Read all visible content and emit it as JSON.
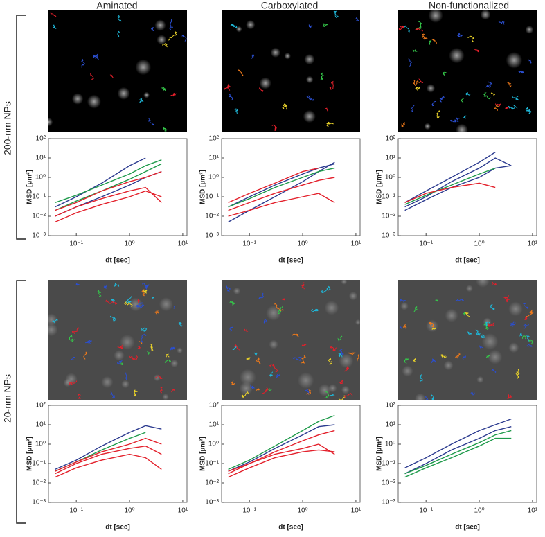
{
  "columns": [
    "Aminated",
    "Carboxylated",
    "Non-functionalized"
  ],
  "rows": [
    "200-nm NPs",
    "20-nm NPs"
  ],
  "chart_data": [
    {
      "type": "line",
      "x_label": "dt [sec]",
      "y_label": "MSD [µm²]",
      "log_x": true,
      "log_y": true,
      "xlim": [
        0.03,
        12
      ],
      "ylim": [
        0.001,
        100
      ],
      "xticks": [
        {
          "value": 0.1,
          "label": "10⁻¹"
        },
        {
          "value": 1,
          "label": "10⁰"
        },
        {
          "value": 10,
          "label": "10¹"
        }
      ],
      "yticks": [
        {
          "value": 0.001,
          "label": "10⁻³"
        },
        {
          "value": 0.01,
          "label": "10⁻²"
        },
        {
          "value": 0.1,
          "label": "10⁻¹"
        },
        {
          "value": 1,
          "label": "10⁰"
        },
        {
          "value": 10,
          "label": "10¹"
        },
        {
          "value": 100,
          "label": "10²"
        }
      ],
      "x": [
        0.04,
        0.1,
        0.3,
        1,
        2,
        4
      ],
      "series": [
        {
          "color": "#2b3a8f",
          "values": [
            0.03,
            0.1,
            0.5,
            4,
            10,
            null
          ]
        },
        {
          "color": "#2b3a8f",
          "values": [
            0.01,
            0.03,
            0.1,
            0.4,
            1,
            2
          ]
        },
        {
          "color": "#1e9a4a",
          "values": [
            0.05,
            0.12,
            0.4,
            1.5,
            4,
            8
          ]
        },
        {
          "color": "#1e9a4a",
          "values": [
            0.02,
            0.06,
            0.2,
            0.8,
            2,
            5
          ]
        },
        {
          "color": "#e3202b",
          "values": [
            0.02,
            0.05,
            0.2,
            0.6,
            1,
            2
          ]
        },
        {
          "color": "#e3202b",
          "values": [
            0.005,
            0.015,
            0.04,
            0.1,
            0.2,
            0.1
          ]
        },
        {
          "color": "#e3202b",
          "values": [
            0.01,
            0.03,
            0.08,
            0.2,
            0.3,
            0.05
          ]
        }
      ]
    },
    {
      "type": "line",
      "x_label": "dt [sec]",
      "y_label": "MSD [µm²]",
      "log_x": true,
      "log_y": true,
      "xlim": [
        0.03,
        12
      ],
      "ylim": [
        0.001,
        100
      ],
      "xticks": [
        {
          "value": 0.1,
          "label": "10⁻¹"
        },
        {
          "value": 1,
          "label": "10⁰"
        },
        {
          "value": 10,
          "label": "10¹"
        }
      ],
      "yticks": [
        {
          "value": 0.001,
          "label": "10⁻³"
        },
        {
          "value": 0.01,
          "label": "10⁻²"
        },
        {
          "value": 0.1,
          "label": "10⁻¹"
        },
        {
          "value": 1,
          "label": "10⁰"
        },
        {
          "value": 10,
          "label": "10¹"
        },
        {
          "value": 100,
          "label": "10²"
        }
      ],
      "x": [
        0.04,
        0.1,
        0.3,
        1,
        2,
        4
      ],
      "series": [
        {
          "color": "#2b3a8f",
          "values": [
            0.005,
            0.02,
            0.1,
            0.6,
            2,
            6
          ]
        },
        {
          "color": "#2b3a8f",
          "values": [
            0.03,
            0.1,
            0.4,
            1.5,
            3,
            5
          ]
        },
        {
          "color": "#1e9a4a",
          "values": [
            0.03,
            0.08,
            0.3,
            1,
            2,
            3
          ]
        },
        {
          "color": "#e3202b",
          "values": [
            0.05,
            0.15,
            0.5,
            2,
            3,
            null
          ]
        },
        {
          "color": "#e3202b",
          "values": [
            0.02,
            0.05,
            0.15,
            0.4,
            0.7,
            1
          ]
        },
        {
          "color": "#e3202b",
          "values": [
            0.01,
            0.02,
            0.05,
            0.1,
            0.15,
            0.05
          ]
        }
      ]
    },
    {
      "type": "line",
      "x_label": "dt [sec]",
      "y_label": "MSD [µm²]",
      "log_x": true,
      "log_y": true,
      "xlim": [
        0.03,
        12
      ],
      "ylim": [
        0.001,
        100
      ],
      "xticks": [
        {
          "value": 0.1,
          "label": "10⁻¹"
        },
        {
          "value": 1,
          "label": "10⁰"
        },
        {
          "value": 10,
          "label": "10¹"
        }
      ],
      "yticks": [
        {
          "value": 0.001,
          "label": "10⁻³"
        },
        {
          "value": 0.01,
          "label": "10⁻²"
        },
        {
          "value": 0.1,
          "label": "10⁻¹"
        },
        {
          "value": 1,
          "label": "10⁰"
        },
        {
          "value": 10,
          "label": "10¹"
        },
        {
          "value": 100,
          "label": "10²"
        }
      ],
      "x": [
        0.04,
        0.1,
        0.3,
        1,
        2,
        4
      ],
      "series": [
        {
          "color": "#2b3a8f",
          "values": [
            0.05,
            0.2,
            1,
            6,
            20,
            null
          ]
        },
        {
          "color": "#2b3a8f",
          "values": [
            0.03,
            0.1,
            0.6,
            3,
            10,
            4
          ]
        },
        {
          "color": "#2b3a8f",
          "values": [
            0.02,
            0.07,
            0.3,
            1,
            3,
            4
          ]
        },
        {
          "color": "#1e9a4a",
          "values": [
            0.04,
            0.12,
            0.4,
            1.5,
            3,
            null
          ]
        },
        {
          "color": "#e3202b",
          "values": [
            0.05,
            0.15,
            0.3,
            0.5,
            0.3,
            null
          ]
        }
      ]
    },
    {
      "type": "line",
      "x_label": "dt [sec]",
      "y_label": "MSD [µm²]",
      "log_x": true,
      "log_y": true,
      "xlim": [
        0.03,
        12
      ],
      "ylim": [
        0.001,
        100
      ],
      "xticks": [
        {
          "value": 0.1,
          "label": "10⁻¹"
        },
        {
          "value": 1,
          "label": "10⁰"
        },
        {
          "value": 10,
          "label": "10¹"
        }
      ],
      "yticks": [
        {
          "value": 0.001,
          "label": "10⁻³"
        },
        {
          "value": 0.01,
          "label": "10⁻²"
        },
        {
          "value": 0.1,
          "label": "10⁻¹"
        },
        {
          "value": 1,
          "label": "10⁰"
        },
        {
          "value": 10,
          "label": "10¹"
        },
        {
          "value": 100,
          "label": "10²"
        }
      ],
      "x": [
        0.04,
        0.1,
        0.3,
        1,
        2,
        4
      ],
      "series": [
        {
          "color": "#2b3a8f",
          "values": [
            0.05,
            0.15,
            0.8,
            4,
            9,
            6
          ]
        },
        {
          "color": "#1e9a4a",
          "values": [
            0.04,
            0.12,
            0.5,
            2,
            4,
            null
          ]
        },
        {
          "color": "#e3202b",
          "values": [
            0.04,
            0.12,
            0.4,
            1,
            2,
            1
          ]
        },
        {
          "color": "#e3202b",
          "values": [
            0.03,
            0.1,
            0.3,
            0.6,
            0.8,
            0.3
          ]
        },
        {
          "color": "#e3202b",
          "values": [
            0.02,
            0.06,
            0.15,
            0.3,
            0.2,
            0.05
          ]
        }
      ]
    },
    {
      "type": "line",
      "x_label": "dt [sec]",
      "y_label": "MSD [µm²]",
      "log_x": true,
      "log_y": true,
      "xlim": [
        0.03,
        12
      ],
      "ylim": [
        0.001,
        100
      ],
      "xticks": [
        {
          "value": 0.1,
          "label": "10⁻¹"
        },
        {
          "value": 1,
          "label": "10⁰"
        },
        {
          "value": 10,
          "label": "10¹"
        }
      ],
      "yticks": [
        {
          "value": 0.001,
          "label": "10⁻³"
        },
        {
          "value": 0.01,
          "label": "10⁻²"
        },
        {
          "value": 0.1,
          "label": "10⁻¹"
        },
        {
          "value": 1,
          "label": "10⁰"
        },
        {
          "value": 10,
          "label": "10¹"
        },
        {
          "value": 100,
          "label": "10²"
        }
      ],
      "x": [
        0.04,
        0.1,
        0.3,
        1,
        2,
        4
      ],
      "series": [
        {
          "color": "#1e9a4a",
          "values": [
            0.05,
            0.15,
            0.8,
            5,
            15,
            30
          ]
        },
        {
          "color": "#2b3a8f",
          "values": [
            0.04,
            0.12,
            0.6,
            3,
            8,
            10
          ]
        },
        {
          "color": "#e3202b",
          "values": [
            0.03,
            0.1,
            0.4,
            1.5,
            3,
            5
          ]
        },
        {
          "color": "#e3202b",
          "values": [
            0.02,
            0.06,
            0.2,
            0.4,
            0.5,
            0.4
          ]
        },
        {
          "color": "#e3202b",
          "values": [
            0.04,
            0.1,
            0.3,
            0.6,
            1,
            0.3
          ]
        }
      ]
    },
    {
      "type": "line",
      "x_label": "dt [sec]",
      "y_label": "MSD [µm²]",
      "log_x": true,
      "log_y": true,
      "xlim": [
        0.03,
        12
      ],
      "ylim": [
        0.001,
        100
      ],
      "xticks": [
        {
          "value": 0.1,
          "label": "10⁻¹"
        },
        {
          "value": 1,
          "label": "10⁰"
        },
        {
          "value": 10,
          "label": "10¹"
        }
      ],
      "yticks": [
        {
          "value": 0.001,
          "label": "10⁻³"
        },
        {
          "value": 0.01,
          "label": "10⁻²"
        },
        {
          "value": 0.1,
          "label": "10⁻¹"
        },
        {
          "value": 1,
          "label": "10⁰"
        },
        {
          "value": 10,
          "label": "10¹"
        },
        {
          "value": 100,
          "label": "10²"
        }
      ],
      "x": [
        0.04,
        0.1,
        0.3,
        1,
        2,
        4
      ],
      "series": [
        {
          "color": "#2b3a8f",
          "values": [
            0.06,
            0.2,
            1,
            5,
            10,
            20
          ]
        },
        {
          "color": "#2b3a8f",
          "values": [
            0.03,
            0.1,
            0.5,
            2,
            5,
            8
          ]
        },
        {
          "color": "#1e9a4a",
          "values": [
            0.03,
            0.08,
            0.3,
            1.2,
            3,
            5
          ]
        },
        {
          "color": "#1e9a4a",
          "values": [
            0.02,
            0.06,
            0.2,
            0.8,
            2,
            2
          ]
        }
      ]
    }
  ]
}
